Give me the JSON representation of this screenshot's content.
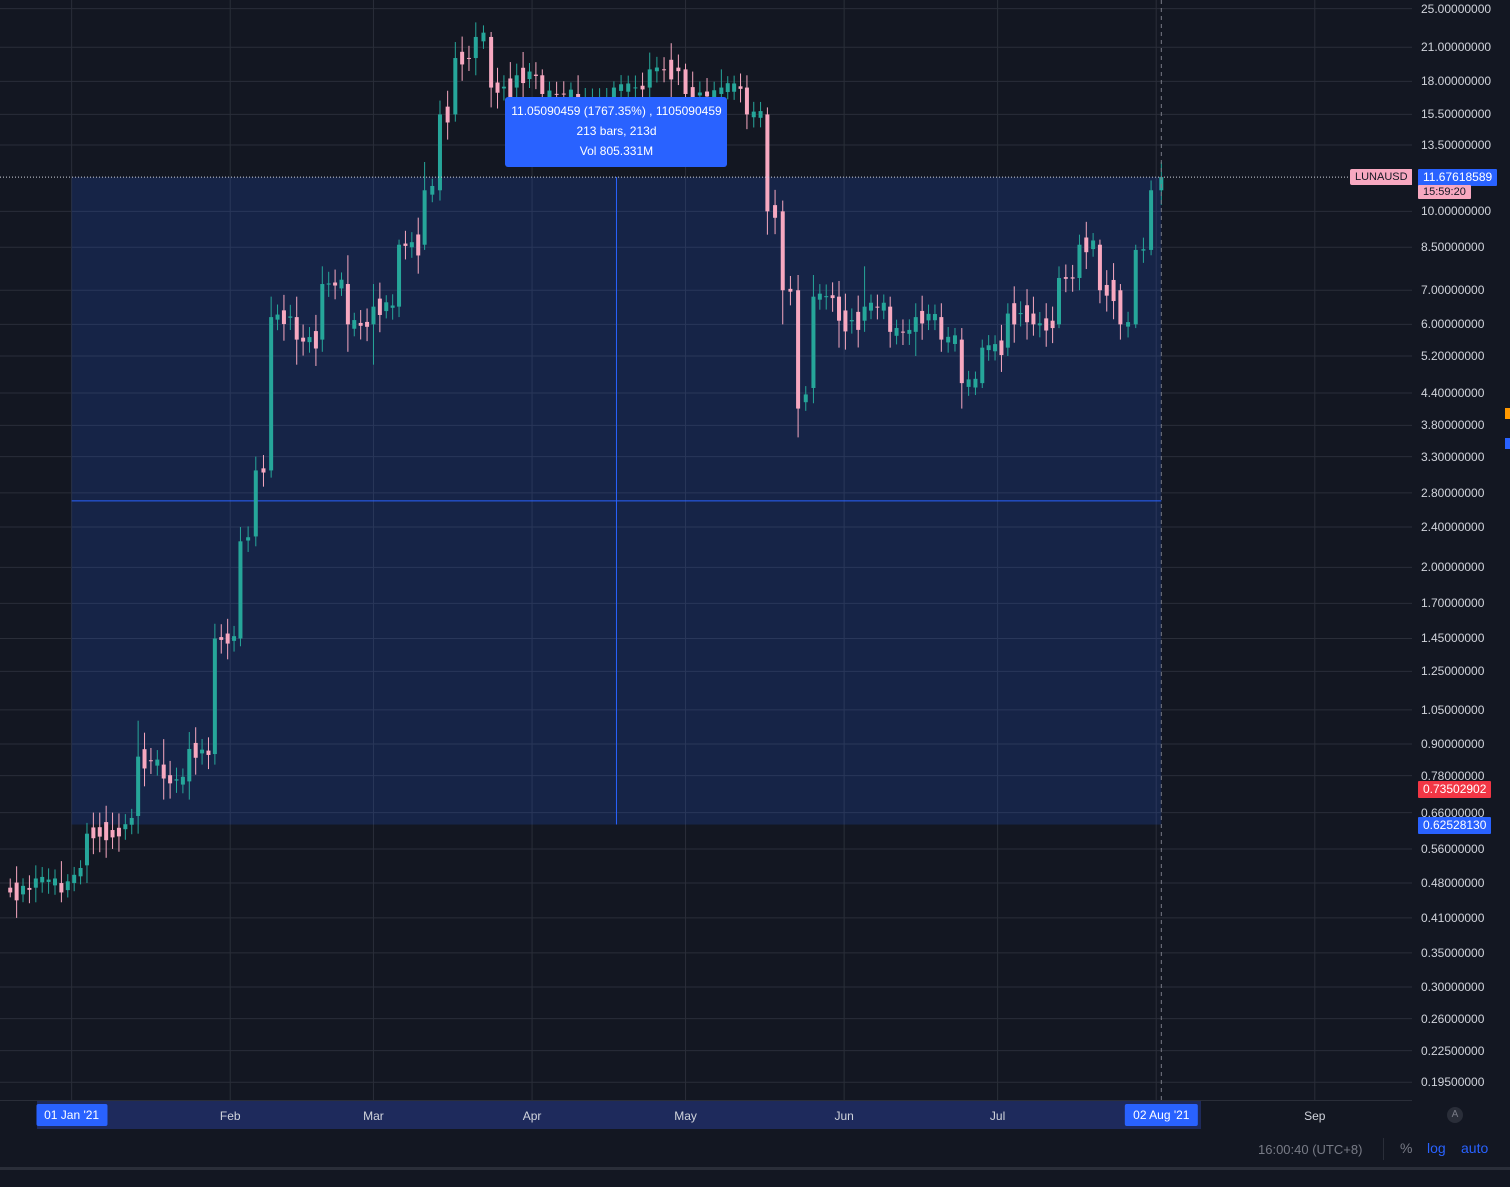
{
  "symbol": "LUNAUSD",
  "colors": {
    "up": "#26a69a",
    "down": "#f7a8c0",
    "accent": "#2962ff",
    "background": "#131722",
    "grid": "#2a2e39",
    "low_badge": "#f23645"
  },
  "price_axis": {
    "ticks": [
      "25.00000000",
      "21.00000000",
      "18.00000000",
      "15.50000000",
      "13.50000000",
      "10.00000000",
      "8.50000000",
      "7.00000000",
      "6.00000000",
      "5.20000000",
      "4.40000000",
      "3.80000000",
      "3.30000000",
      "2.80000000",
      "2.40000000",
      "2.00000000",
      "1.70000000",
      "1.45000000",
      "1.25000000",
      "1.05000000",
      "0.90000000",
      "0.78000000",
      "0.66000000",
      "0.56000000",
      "0.48000000",
      "0.41000000",
      "0.35000000",
      "0.30000000",
      "0.26000000",
      "0.22500000",
      "0.19500000"
    ],
    "last_price": "11.67618589",
    "countdown": "15:59:20",
    "badge_low_red": "0.73502902",
    "badge_low_blue": "0.62528130"
  },
  "time_axis": {
    "labels": [
      "Feb",
      "Mar",
      "Apr",
      "May",
      "Jun",
      "Jul",
      "Sep"
    ],
    "start_badge": "01 Jan '21",
    "end_badge": "02 Aug '21"
  },
  "measure": {
    "line1": "11.05090459 (1767.35%) , 1105090459",
    "line2": "213 bars, 213d",
    "line3": "Vol 805.331M"
  },
  "bottom_bar": {
    "clock": "16:00:40 (UTC+8)",
    "percent_btn": "%",
    "log_btn": "log",
    "auto_btn": "auto",
    "auto_scale_icon": "A"
  },
  "chart_data": {
    "type": "candlestick",
    "title": "LUNAUSD",
    "scale": "log",
    "ylim": [
      0.18,
      26
    ],
    "x_range": [
      "2020-12-18",
      "2021-09-20"
    ],
    "grid": true,
    "series": [
      {
        "date": "2020-12-20",
        "open": 0.47,
        "high": 0.49,
        "low": 0.45,
        "close": 0.46
      },
      {
        "date": "2020-12-25",
        "open": 0.47,
        "high": 0.52,
        "low": 0.44,
        "close": 0.49
      },
      {
        "date": "2020-12-30",
        "open": 0.48,
        "high": 0.53,
        "low": 0.44,
        "close": 0.46
      },
      {
        "date": "2021-01-04",
        "open": 0.52,
        "high": 0.63,
        "low": 0.48,
        "close": 0.6
      },
      {
        "date": "2021-01-09",
        "open": 0.61,
        "high": 0.66,
        "low": 0.56,
        "close": 0.59
      },
      {
        "date": "2021-01-14",
        "open": 0.65,
        "high": 1.0,
        "low": 0.6,
        "close": 0.85
      },
      {
        "date": "2021-01-19",
        "open": 0.82,
        "high": 0.92,
        "low": 0.7,
        "close": 0.77
      },
      {
        "date": "2021-01-24",
        "open": 0.76,
        "high": 0.95,
        "low": 0.7,
        "close": 0.88
      },
      {
        "date": "2021-01-29",
        "open": 0.86,
        "high": 1.55,
        "low": 0.82,
        "close": 1.45
      },
      {
        "date": "2021-02-03",
        "open": 1.45,
        "high": 2.4,
        "low": 1.4,
        "close": 2.25
      },
      {
        "date": "2021-02-06",
        "open": 2.3,
        "high": 3.3,
        "low": 2.2,
        "close": 3.1
      },
      {
        "date": "2021-02-09",
        "open": 3.1,
        "high": 6.8,
        "low": 3.0,
        "close": 6.2
      },
      {
        "date": "2021-02-14",
        "open": 6.2,
        "high": 6.8,
        "low": 5.0,
        "close": 5.6
      },
      {
        "date": "2021-02-19",
        "open": 5.6,
        "high": 7.8,
        "low": 5.3,
        "close": 7.2
      },
      {
        "date": "2021-02-24",
        "open": 7.2,
        "high": 8.2,
        "low": 5.3,
        "close": 6.0
      },
      {
        "date": "2021-03-01",
        "open": 6.0,
        "high": 7.2,
        "low": 5.0,
        "close": 6.5
      },
      {
        "date": "2021-03-06",
        "open": 6.5,
        "high": 8.8,
        "low": 6.2,
        "close": 8.6
      },
      {
        "date": "2021-03-11",
        "open": 8.6,
        "high": 12.5,
        "low": 8.4,
        "close": 11.0
      },
      {
        "date": "2021-03-14",
        "open": 11.0,
        "high": 16.5,
        "low": 10.5,
        "close": 15.5
      },
      {
        "date": "2021-03-17",
        "open": 15.5,
        "high": 21.5,
        "low": 15.0,
        "close": 20.0
      },
      {
        "date": "2021-03-21",
        "open": 20.0,
        "high": 23.5,
        "low": 18.5,
        "close": 22.0
      },
      {
        "date": "2021-03-24",
        "open": 22.0,
        "high": 22.5,
        "low": 16.0,
        "close": 17.5
      },
      {
        "date": "2021-03-29",
        "open": 17.5,
        "high": 19.5,
        "low": 16.0,
        "close": 18.5
      },
      {
        "date": "2021-04-03",
        "open": 18.5,
        "high": 19.0,
        "low": 16.5,
        "close": 17.0
      },
      {
        "date": "2021-04-10",
        "open": 17.0,
        "high": 18.5,
        "low": 15.5,
        "close": 16.5
      },
      {
        "date": "2021-04-17",
        "open": 16.5,
        "high": 18.0,
        "low": 15.5,
        "close": 17.5
      },
      {
        "date": "2021-04-24",
        "open": 17.5,
        "high": 20.5,
        "low": 16.5,
        "close": 19.0
      },
      {
        "date": "2021-05-01",
        "open": 19.0,
        "high": 19.5,
        "low": 16.0,
        "close": 17.0
      },
      {
        "date": "2021-05-08",
        "open": 17.0,
        "high": 19.0,
        "low": 15.5,
        "close": 17.5
      },
      {
        "date": "2021-05-13",
        "open": 17.5,
        "high": 18.5,
        "low": 14.5,
        "close": 15.5
      },
      {
        "date": "2021-05-17",
        "open": 15.5,
        "high": 16.0,
        "low": 9.0,
        "close": 10.0
      },
      {
        "date": "2021-05-20",
        "open": 10.0,
        "high": 10.5,
        "low": 6.0,
        "close": 7.0
      },
      {
        "date": "2021-05-23",
        "open": 7.0,
        "high": 7.5,
        "low": 3.6,
        "close": 4.1
      },
      {
        "date": "2021-05-26",
        "open": 4.5,
        "high": 7.5,
        "low": 4.2,
        "close": 6.8
      },
      {
        "date": "2021-05-31",
        "open": 6.8,
        "high": 7.3,
        "low": 5.4,
        "close": 6.1
      },
      {
        "date": "2021-06-05",
        "open": 6.1,
        "high": 7.8,
        "low": 5.8,
        "close": 6.5
      },
      {
        "date": "2021-06-10",
        "open": 6.5,
        "high": 6.8,
        "low": 5.4,
        "close": 5.8
      },
      {
        "date": "2021-06-15",
        "open": 5.8,
        "high": 6.6,
        "low": 5.2,
        "close": 6.2
      },
      {
        "date": "2021-06-20",
        "open": 6.2,
        "high": 6.6,
        "low": 5.3,
        "close": 5.6
      },
      {
        "date": "2021-06-24",
        "open": 5.6,
        "high": 5.9,
        "low": 4.1,
        "close": 4.6
      },
      {
        "date": "2021-06-28",
        "open": 4.6,
        "high": 5.6,
        "low": 4.5,
        "close": 5.4
      },
      {
        "date": "2021-07-03",
        "open": 5.4,
        "high": 6.6,
        "low": 5.2,
        "close": 6.3
      },
      {
        "date": "2021-07-08",
        "open": 6.3,
        "high": 6.8,
        "low": 5.7,
        "close": 6.0
      },
      {
        "date": "2021-07-13",
        "open": 6.0,
        "high": 7.8,
        "low": 5.9,
        "close": 7.4
      },
      {
        "date": "2021-07-17",
        "open": 7.4,
        "high": 9.0,
        "low": 7.0,
        "close": 8.6
      },
      {
        "date": "2021-07-21",
        "open": 8.6,
        "high": 8.8,
        "low": 6.6,
        "close": 7.0
      },
      {
        "date": "2021-07-25",
        "open": 7.0,
        "high": 7.2,
        "low": 5.6,
        "close": 6.0
      },
      {
        "date": "2021-07-28",
        "open": 6.0,
        "high": 8.6,
        "low": 5.9,
        "close": 8.4
      },
      {
        "date": "2021-07-31",
        "open": 8.4,
        "high": 11.5,
        "low": 8.2,
        "close": 11.0
      },
      {
        "date": "2021-08-02",
        "open": 11.0,
        "high": 12.5,
        "low": 10.3,
        "close": 11.67618589
      }
    ]
  }
}
